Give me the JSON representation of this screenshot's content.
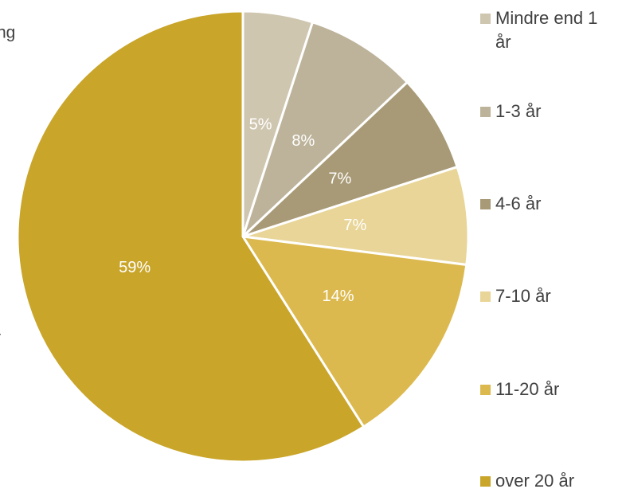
{
  "chart_data": {
    "type": "pie",
    "categories": [
      "Mindre end 1 år",
      "1-3 år",
      "4-6 år",
      "7-10 år",
      "11-20 år",
      "over 20 år"
    ],
    "values": [
      5,
      8,
      7,
      7,
      14,
      59
    ],
    "value_labels": [
      "5%",
      "8%",
      "7%",
      "7%",
      "14%",
      "59%"
    ],
    "colors": [
      "#cfc6b0",
      "#bdb39a",
      "#a89a76",
      "#e8d597",
      "#dcb94e",
      "#c9a52a"
    ],
    "annotations": [
      "ng",
      "r"
    ]
  }
}
